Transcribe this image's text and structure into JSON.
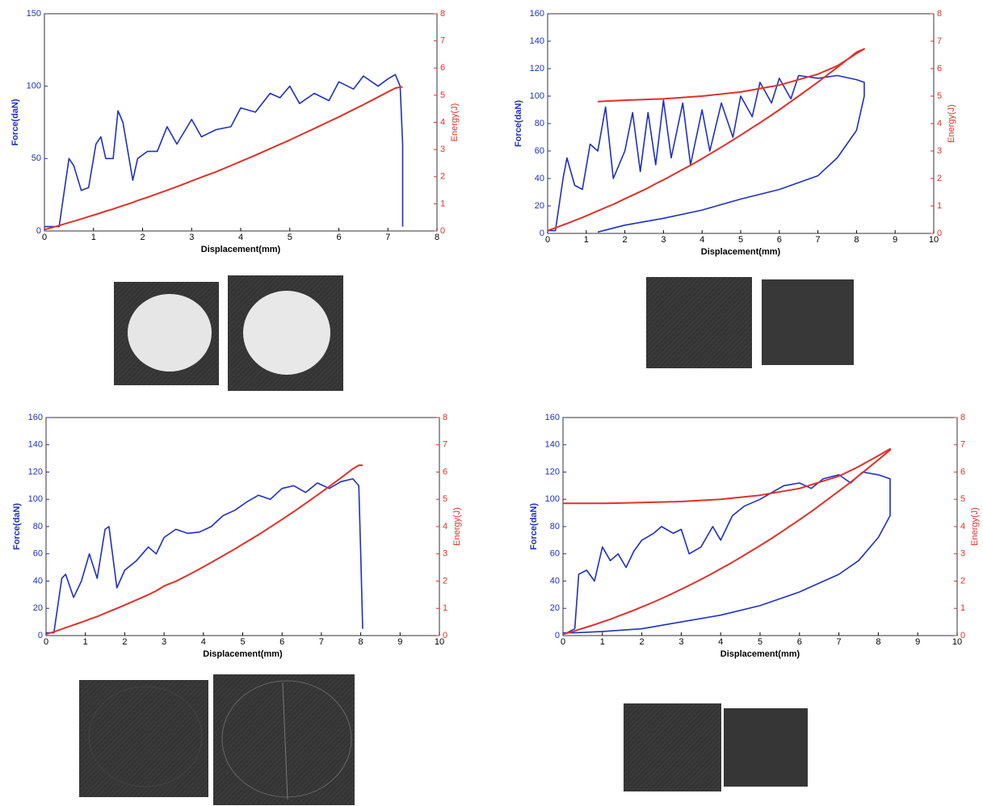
{
  "chart_data": [
    {
      "type": "line",
      "xlabel": "Displacement(mm)",
      "ylabel": "Force(daN)",
      "y2label": "Energy(J)",
      "xlim": [
        0,
        8
      ],
      "xticks": [
        0,
        1,
        2,
        3,
        4,
        5,
        6,
        7,
        8
      ],
      "ylim": [
        0,
        150
      ],
      "yticks": [
        0,
        50,
        100,
        150
      ],
      "y2lim": [
        0,
        8
      ],
      "y2ticks": [
        0,
        1,
        2,
        3,
        4,
        5,
        6,
        7,
        8
      ],
      "x": [
        0,
        0.3,
        0.5,
        0.6,
        0.75,
        0.9,
        1.05,
        1.15,
        1.25,
        1.4,
        1.5,
        1.6,
        1.8,
        1.9,
        2.1,
        2.3,
        2.5,
        2.7,
        3.0,
        3.2,
        3.5,
        3.8,
        4.0,
        4.3,
        4.6,
        4.8,
        5.0,
        5.2,
        5.5,
        5.8,
        6.0,
        6.3,
        6.5,
        6.8,
        7.0,
        7.15,
        7.25,
        7.3,
        7.3
      ],
      "series": [
        {
          "color": "#1f2fc0",
          "values": [
            3,
            3,
            50,
            45,
            28,
            30,
            60,
            65,
            50,
            50,
            83,
            75,
            35,
            50,
            55,
            55,
            72,
            60,
            77,
            65,
            70,
            72,
            85,
            82,
            95,
            92,
            100,
            88,
            95,
            90,
            103,
            98,
            107,
            100,
            105,
            108,
            100,
            60,
            3
          ]
        },
        {
          "color": "#e0312a",
          "axis": "y2",
          "values": [
            0.05,
            0.2,
            0.31,
            0.36,
            0.44,
            0.53,
            0.61,
            0.67,
            0.73,
            0.81,
            0.87,
            0.93,
            1.05,
            1.12,
            1.24,
            1.37,
            1.5,
            1.63,
            1.84,
            1.98,
            2.18,
            2.41,
            2.56,
            2.79,
            3.03,
            3.19,
            3.35,
            3.52,
            3.77,
            4.03,
            4.2,
            4.47,
            4.65,
            4.93,
            5.12,
            5.26,
            5.3,
            5.3,
            5.3
          ]
        }
      ]
    },
    {
      "type": "line",
      "xlabel": "Displacement(mm)",
      "ylabel": "Force(daN)",
      "y2label": "Energy(J)",
      "xlim": [
        0,
        10
      ],
      "xticks": [
        0,
        1,
        2,
        3,
        4,
        5,
        6,
        7,
        8,
        9,
        10
      ],
      "ylim": [
        0,
        160
      ],
      "yticks": [
        0,
        20,
        40,
        60,
        80,
        100,
        120,
        140,
        160
      ],
      "y2lim": [
        0,
        8
      ],
      "y2ticks": [
        0,
        1,
        2,
        3,
        4,
        5,
        6,
        7,
        8
      ],
      "x": [
        0,
        0.2,
        0.4,
        0.5,
        0.7,
        0.9,
        1.1,
        1.3,
        1.5,
        1.7,
        2.0,
        2.2,
        2.4,
        2.6,
        2.8,
        3.0,
        3.2,
        3.5,
        3.7,
        4.0,
        4.2,
        4.5,
        4.8,
        5.0,
        5.3,
        5.5,
        5.8,
        6.0,
        6.3,
        6.5,
        7.0,
        7.5,
        8.0,
        8.2,
        8.2,
        8.0,
        7.5,
        7.0,
        6.0,
        5.0,
        4.0,
        3.0,
        2.0,
        1.3
      ],
      "series": [
        {
          "color": "#1f2fc0",
          "values": [
            2,
            2,
            40,
            55,
            35,
            32,
            65,
            60,
            92,
            40,
            60,
            88,
            45,
            88,
            50,
            97,
            55,
            95,
            50,
            90,
            60,
            95,
            70,
            100,
            85,
            110,
            95,
            113,
            98,
            115,
            113,
            115,
            112,
            110,
            100,
            75,
            55,
            42,
            32,
            25,
            17,
            11,
            6,
            1
          ]
        },
        {
          "color": "#e0312a",
          "axis": "y2",
          "values": [
            0.1,
            0.2,
            0.31,
            0.36,
            0.47,
            0.58,
            0.7,
            0.82,
            0.94,
            1.06,
            1.26,
            1.39,
            1.52,
            1.66,
            1.81,
            1.95,
            2.1,
            2.33,
            2.48,
            2.72,
            2.89,
            3.14,
            3.4,
            3.58,
            3.85,
            4.03,
            4.31,
            4.5,
            4.8,
            5.0,
            5.51,
            6.04,
            6.6,
            6.72,
            6.72,
            6.55,
            6.1,
            5.8,
            5.4,
            5.15,
            5.0,
            4.9,
            4.85,
            4.8
          ]
        }
      ]
    },
    {
      "type": "line",
      "xlabel": "Displacement(mm)",
      "ylabel": "Force(daN)",
      "y2label": "Energy(J)",
      "xlim": [
        0,
        10
      ],
      "xticks": [
        0,
        1,
        2,
        3,
        4,
        5,
        6,
        7,
        8,
        9,
        10
      ],
      "ylim": [
        0,
        160
      ],
      "yticks": [
        0,
        20,
        40,
        60,
        80,
        100,
        120,
        140,
        160
      ],
      "y2lim": [
        0,
        8
      ],
      "y2ticks": [
        0,
        1,
        2,
        3,
        4,
        5,
        6,
        7,
        8
      ],
      "x": [
        0,
        0.2,
        0.4,
        0.5,
        0.7,
        0.9,
        1.1,
        1.3,
        1.5,
        1.6,
        1.8,
        2.0,
        2.3,
        2.6,
        2.8,
        3.0,
        3.3,
        3.6,
        3.9,
        4.2,
        4.5,
        4.8,
        5.1,
        5.4,
        5.7,
        6.0,
        6.3,
        6.6,
        6.9,
        7.2,
        7.5,
        7.8,
        7.95,
        8.0,
        8.05
      ],
      "series": [
        {
          "color": "#1f2fc0",
          "values": [
            2,
            2,
            42,
            45,
            28,
            40,
            60,
            42,
            78,
            80,
            35,
            48,
            55,
            65,
            60,
            72,
            78,
            75,
            76,
            80,
            88,
            92,
            98,
            103,
            100,
            108,
            110,
            105,
            112,
            108,
            113,
            115,
            110,
            60,
            5
          ]
        },
        {
          "color": "#e0312a",
          "axis": "y2",
          "values": [
            0.05,
            0.14,
            0.24,
            0.29,
            0.39,
            0.49,
            0.6,
            0.7,
            0.82,
            0.88,
            1.0,
            1.12,
            1.31,
            1.5,
            1.64,
            1.82,
            1.99,
            2.21,
            2.44,
            2.68,
            2.93,
            3.18,
            3.44,
            3.7,
            3.98,
            4.26,
            4.55,
            4.85,
            5.16,
            5.47,
            5.79,
            6.12,
            6.25,
            6.25,
            6.25
          ]
        }
      ]
    },
    {
      "type": "line",
      "xlabel": "Displacement(mm)",
      "ylabel": "Force(daN)",
      "y2label": "Energy(J)",
      "xlim": [
        0,
        10
      ],
      "xticks": [
        0,
        1,
        2,
        3,
        4,
        5,
        6,
        7,
        8,
        9,
        10
      ],
      "ylim": [
        0,
        160
      ],
      "yticks": [
        0,
        20,
        40,
        60,
        80,
        100,
        120,
        140,
        160
      ],
      "y2lim": [
        0,
        8
      ],
      "y2ticks": [
        0,
        1,
        2,
        3,
        4,
        5,
        6,
        7,
        8
      ],
      "x": [
        0,
        0.1,
        0.3,
        0.4,
        0.6,
        0.8,
        1.0,
        1.2,
        1.4,
        1.6,
        1.8,
        2.0,
        2.3,
        2.5,
        2.8,
        3.0,
        3.2,
        3.5,
        3.8,
        4.0,
        4.3,
        4.6,
        5.0,
        5.3,
        5.6,
        6.0,
        6.3,
        6.6,
        7.0,
        7.3,
        7.6,
        8.0,
        8.3,
        8.3,
        8.0,
        7.5,
        7.0,
        6.0,
        5.0,
        4.0,
        3.0,
        2.0,
        1.0,
        0.3,
        0
      ],
      "series": [
        {
          "color": "#1f2fc0",
          "values": [
            2,
            2,
            5,
            45,
            48,
            40,
            65,
            55,
            60,
            50,
            62,
            70,
            75,
            80,
            75,
            78,
            60,
            65,
            80,
            70,
            88,
            95,
            100,
            105,
            110,
            112,
            108,
            115,
            118,
            112,
            120,
            118,
            115,
            88,
            72,
            55,
            45,
            32,
            22,
            15,
            10,
            5,
            3,
            2,
            2
          ]
        },
        {
          "color": "#e0312a",
          "axis": "y2",
          "values": [
            0.05,
            0.09,
            0.17,
            0.22,
            0.31,
            0.4,
            0.5,
            0.6,
            0.71,
            0.82,
            0.93,
            1.05,
            1.23,
            1.36,
            1.56,
            1.7,
            1.84,
            2.06,
            2.29,
            2.45,
            2.69,
            2.95,
            3.3,
            3.57,
            3.86,
            4.25,
            4.55,
            4.87,
            5.3,
            5.63,
            5.98,
            6.45,
            6.81,
            6.85,
            6.6,
            6.2,
            5.85,
            5.4,
            5.15,
            5.0,
            4.92,
            4.88,
            4.85,
            4.85,
            4.85
          ]
        }
      ]
    }
  ]
}
